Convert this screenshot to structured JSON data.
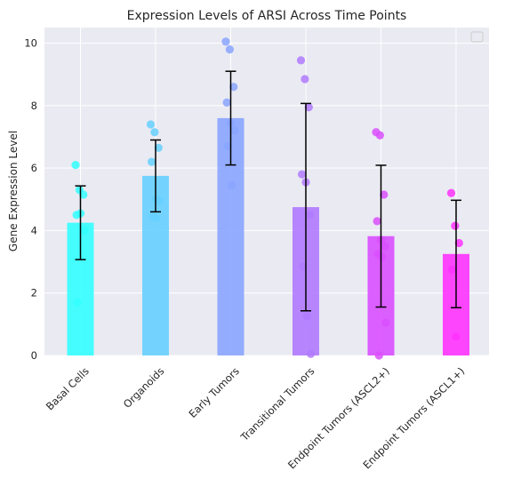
{
  "chart_data": {
    "type": "bar",
    "title": "Expression Levels of ARSI Across Time Points",
    "xlabel": "",
    "ylabel": "Gene Expression Level",
    "ylim": [
      0,
      10.5
    ],
    "yticks": [
      0,
      2,
      4,
      6,
      8,
      10
    ],
    "grid": true,
    "legend": "top-right (empty)",
    "categories": [
      "Basal Cells",
      "Organoids",
      "Early Tumors",
      "Transitional Tumors",
      "Endpoint Tumors (ASCL2+)",
      "Endpoint Tumors (ASCL1+)"
    ],
    "values": [
      4.25,
      5.75,
      7.6,
      4.75,
      3.82,
      3.25
    ],
    "errors": [
      1.18,
      1.15,
      1.5,
      3.32,
      2.27,
      1.72
    ],
    "colors": [
      "#33ffff",
      "#66d0ff",
      "#8aa5ff",
      "#b07aff",
      "#d94fff",
      "#ff33ff"
    ],
    "points": [
      [
        6.1,
        5.3,
        5.15,
        4.5,
        4.55,
        4.0,
        1.7
      ],
      [
        7.4,
        7.15,
        6.65,
        6.2,
        5.0,
        4.95,
        4.45,
        4.4
      ],
      [
        10.05,
        9.8,
        8.6,
        8.1,
        7.45,
        7.2,
        6.7,
        5.45
      ],
      [
        9.45,
        8.85,
        7.95,
        5.8,
        5.55,
        4.5,
        2.85,
        1.25,
        0.05
      ],
      [
        7.15,
        7.05,
        5.15,
        4.3,
        3.7,
        3.5,
        3.25,
        3.15,
        1.05,
        0.0
      ],
      [
        5.2,
        4.15,
        3.6,
        2.75,
        0.6
      ]
    ]
  }
}
